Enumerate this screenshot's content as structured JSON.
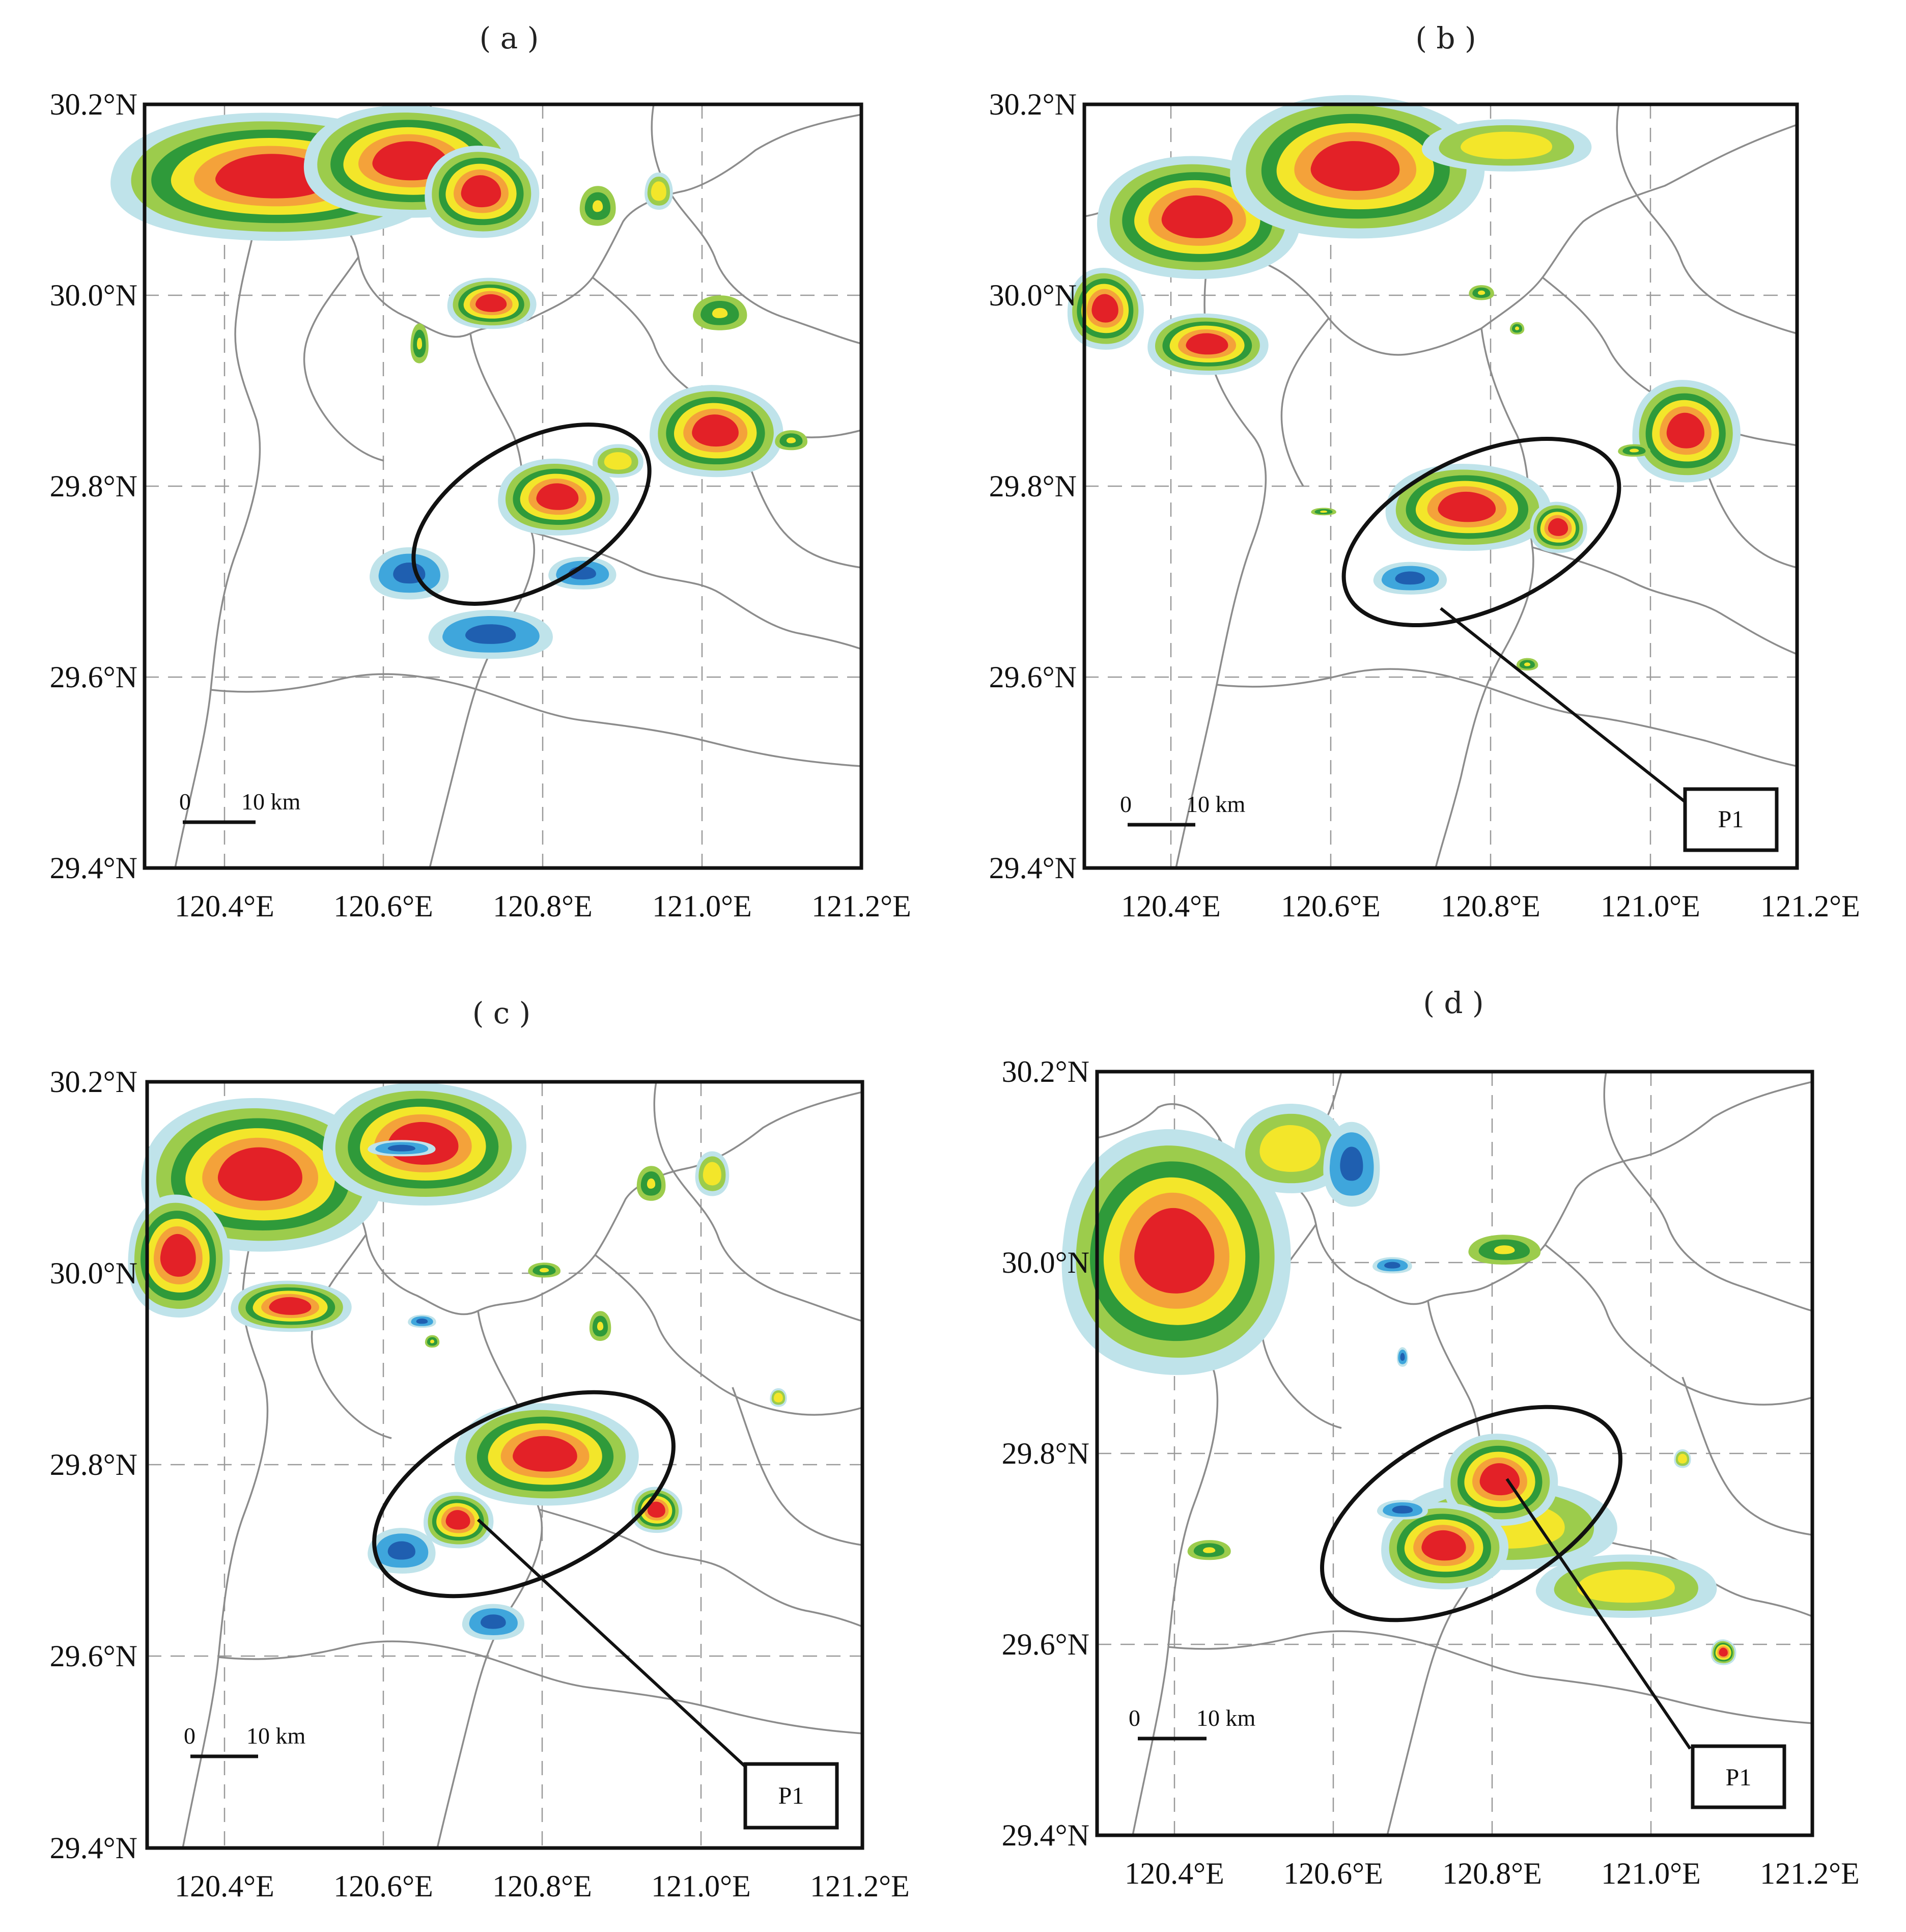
{
  "panels": [
    {
      "id": "a",
      "title": "( a )",
      "x_ticks": [
        "120.4°E",
        "120.6°E",
        "120.8°E",
        "121.0°E",
        "121.2°E"
      ],
      "y_ticks": [
        "30.2°N",
        "30.0°N",
        "29.8°N",
        "29.6°N",
        "29.4°N"
      ],
      "scale_zero": "0",
      "scale_label": "10 km",
      "label": ""
    },
    {
      "id": "b",
      "title": "( b )",
      "x_ticks": [
        "120.4°E",
        "120.6°E",
        "120.8°E",
        "121.0°E",
        "121.2°E"
      ],
      "y_ticks": [
        "30.2°N",
        "30.0°N",
        "29.8°N",
        "29.6°N",
        "29.4°N"
      ],
      "scale_zero": "0",
      "scale_label": "10 km",
      "label": "P1"
    },
    {
      "id": "c",
      "title": "( c )",
      "x_ticks": [
        "120.4°E",
        "120.6°E",
        "120.8°E",
        "121.0°E",
        "121.2°E"
      ],
      "y_ticks": [
        "30.2°N",
        "30.0°N",
        "29.8°N",
        "29.6°N",
        "29.4°N"
      ],
      "scale_zero": "0",
      "scale_label": "10 km",
      "label": "P1"
    },
    {
      "id": "d",
      "title": "( d )",
      "x_ticks": [
        "120.4°E",
        "120.6°E",
        "120.8°E",
        "121.0°E",
        "121.2°E"
      ],
      "y_ticks": [
        "30.2°N",
        "30.0°N",
        "29.8°N",
        "29.6°N",
        "29.4°N"
      ],
      "scale_zero": "0",
      "scale_label": "10 km",
      "label": "P1"
    }
  ],
  "colors": {
    "echo_lightblue": "#bfe3ea",
    "echo_blue": "#3fa6dc",
    "echo_darkblue": "#1f5fb0",
    "echo_lightgreen": "#9ccc4c",
    "echo_green": "#2f9a3a",
    "echo_yellow": "#f3e62a",
    "echo_orange": "#f4a23a",
    "echo_red": "#e32127",
    "echo_purple": "#9b6bb0"
  }
}
